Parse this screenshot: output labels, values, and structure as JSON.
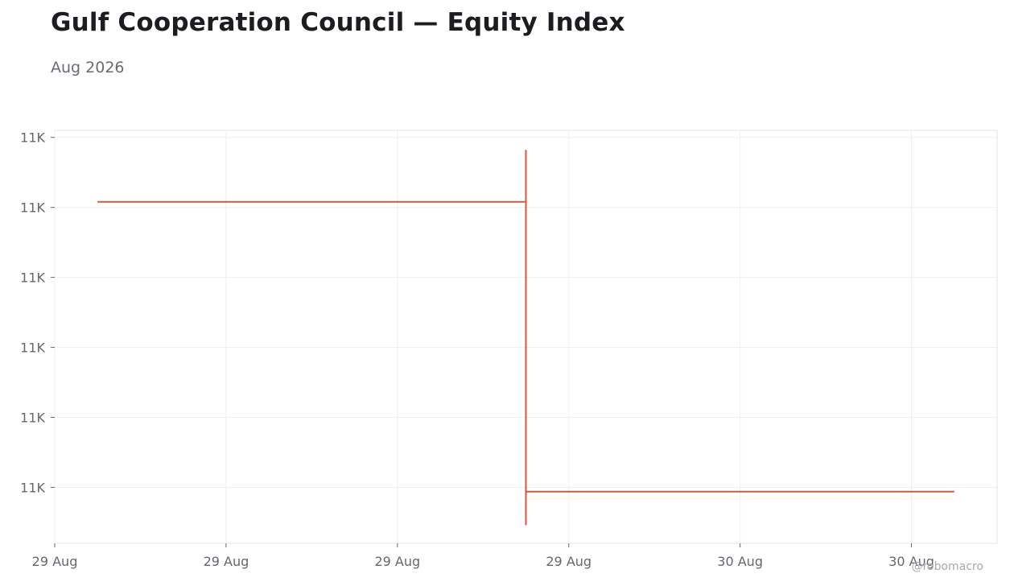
{
  "title": "Gulf Cooperation Council — Equity Index",
  "subtitle": "Aug 2026",
  "watermark": "@robomacro",
  "chart_data": {
    "type": "line",
    "title": "Gulf Cooperation Council — Equity Index",
    "subtitle": "Aug 2026",
    "xlabel": "",
    "ylabel": "",
    "x_tick_labels": [
      "29 Aug",
      "29 Aug",
      "29 Aug",
      "29 Aug",
      "30 Aug",
      "30 Aug"
    ],
    "x_ticks": [
      "2026-08-29 00:00",
      "2026-08-29 04:48",
      "2026-08-29 09:36",
      "2026-08-29 14:24",
      "2026-08-29 19:12",
      "2026-08-30 00:00"
    ],
    "x_range": [
      "2026-08-29 00:00",
      "2026-08-30 02:24"
    ],
    "y_tick_labels": [
      "11K",
      "11K",
      "11K",
      "11K",
      "11K",
      "11K"
    ],
    "y_ticks": [
      11015,
      11014,
      11013,
      11012,
      11011,
      11010
    ],
    "y_range": [
      11009.2,
      11015.1
    ],
    "grid": true,
    "legend": "none",
    "color": "#cc5a3e",
    "series": [
      {
        "points": [
          {
            "x": "2026-08-29 01:12",
            "y": 11014.08
          },
          {
            "x": "2026-08-29 13:12",
            "y": 11014.08
          },
          {
            "x": "2026-08-29 13:12",
            "y": 11014.82
          },
          {
            "x": "2026-08-29 13:12",
            "y": 11009.46
          },
          {
            "x": "2026-08-29 13:12",
            "y": 11009.94
          },
          {
            "x": "2026-08-30 01:12",
            "y": 11009.94
          }
        ]
      }
    ]
  }
}
